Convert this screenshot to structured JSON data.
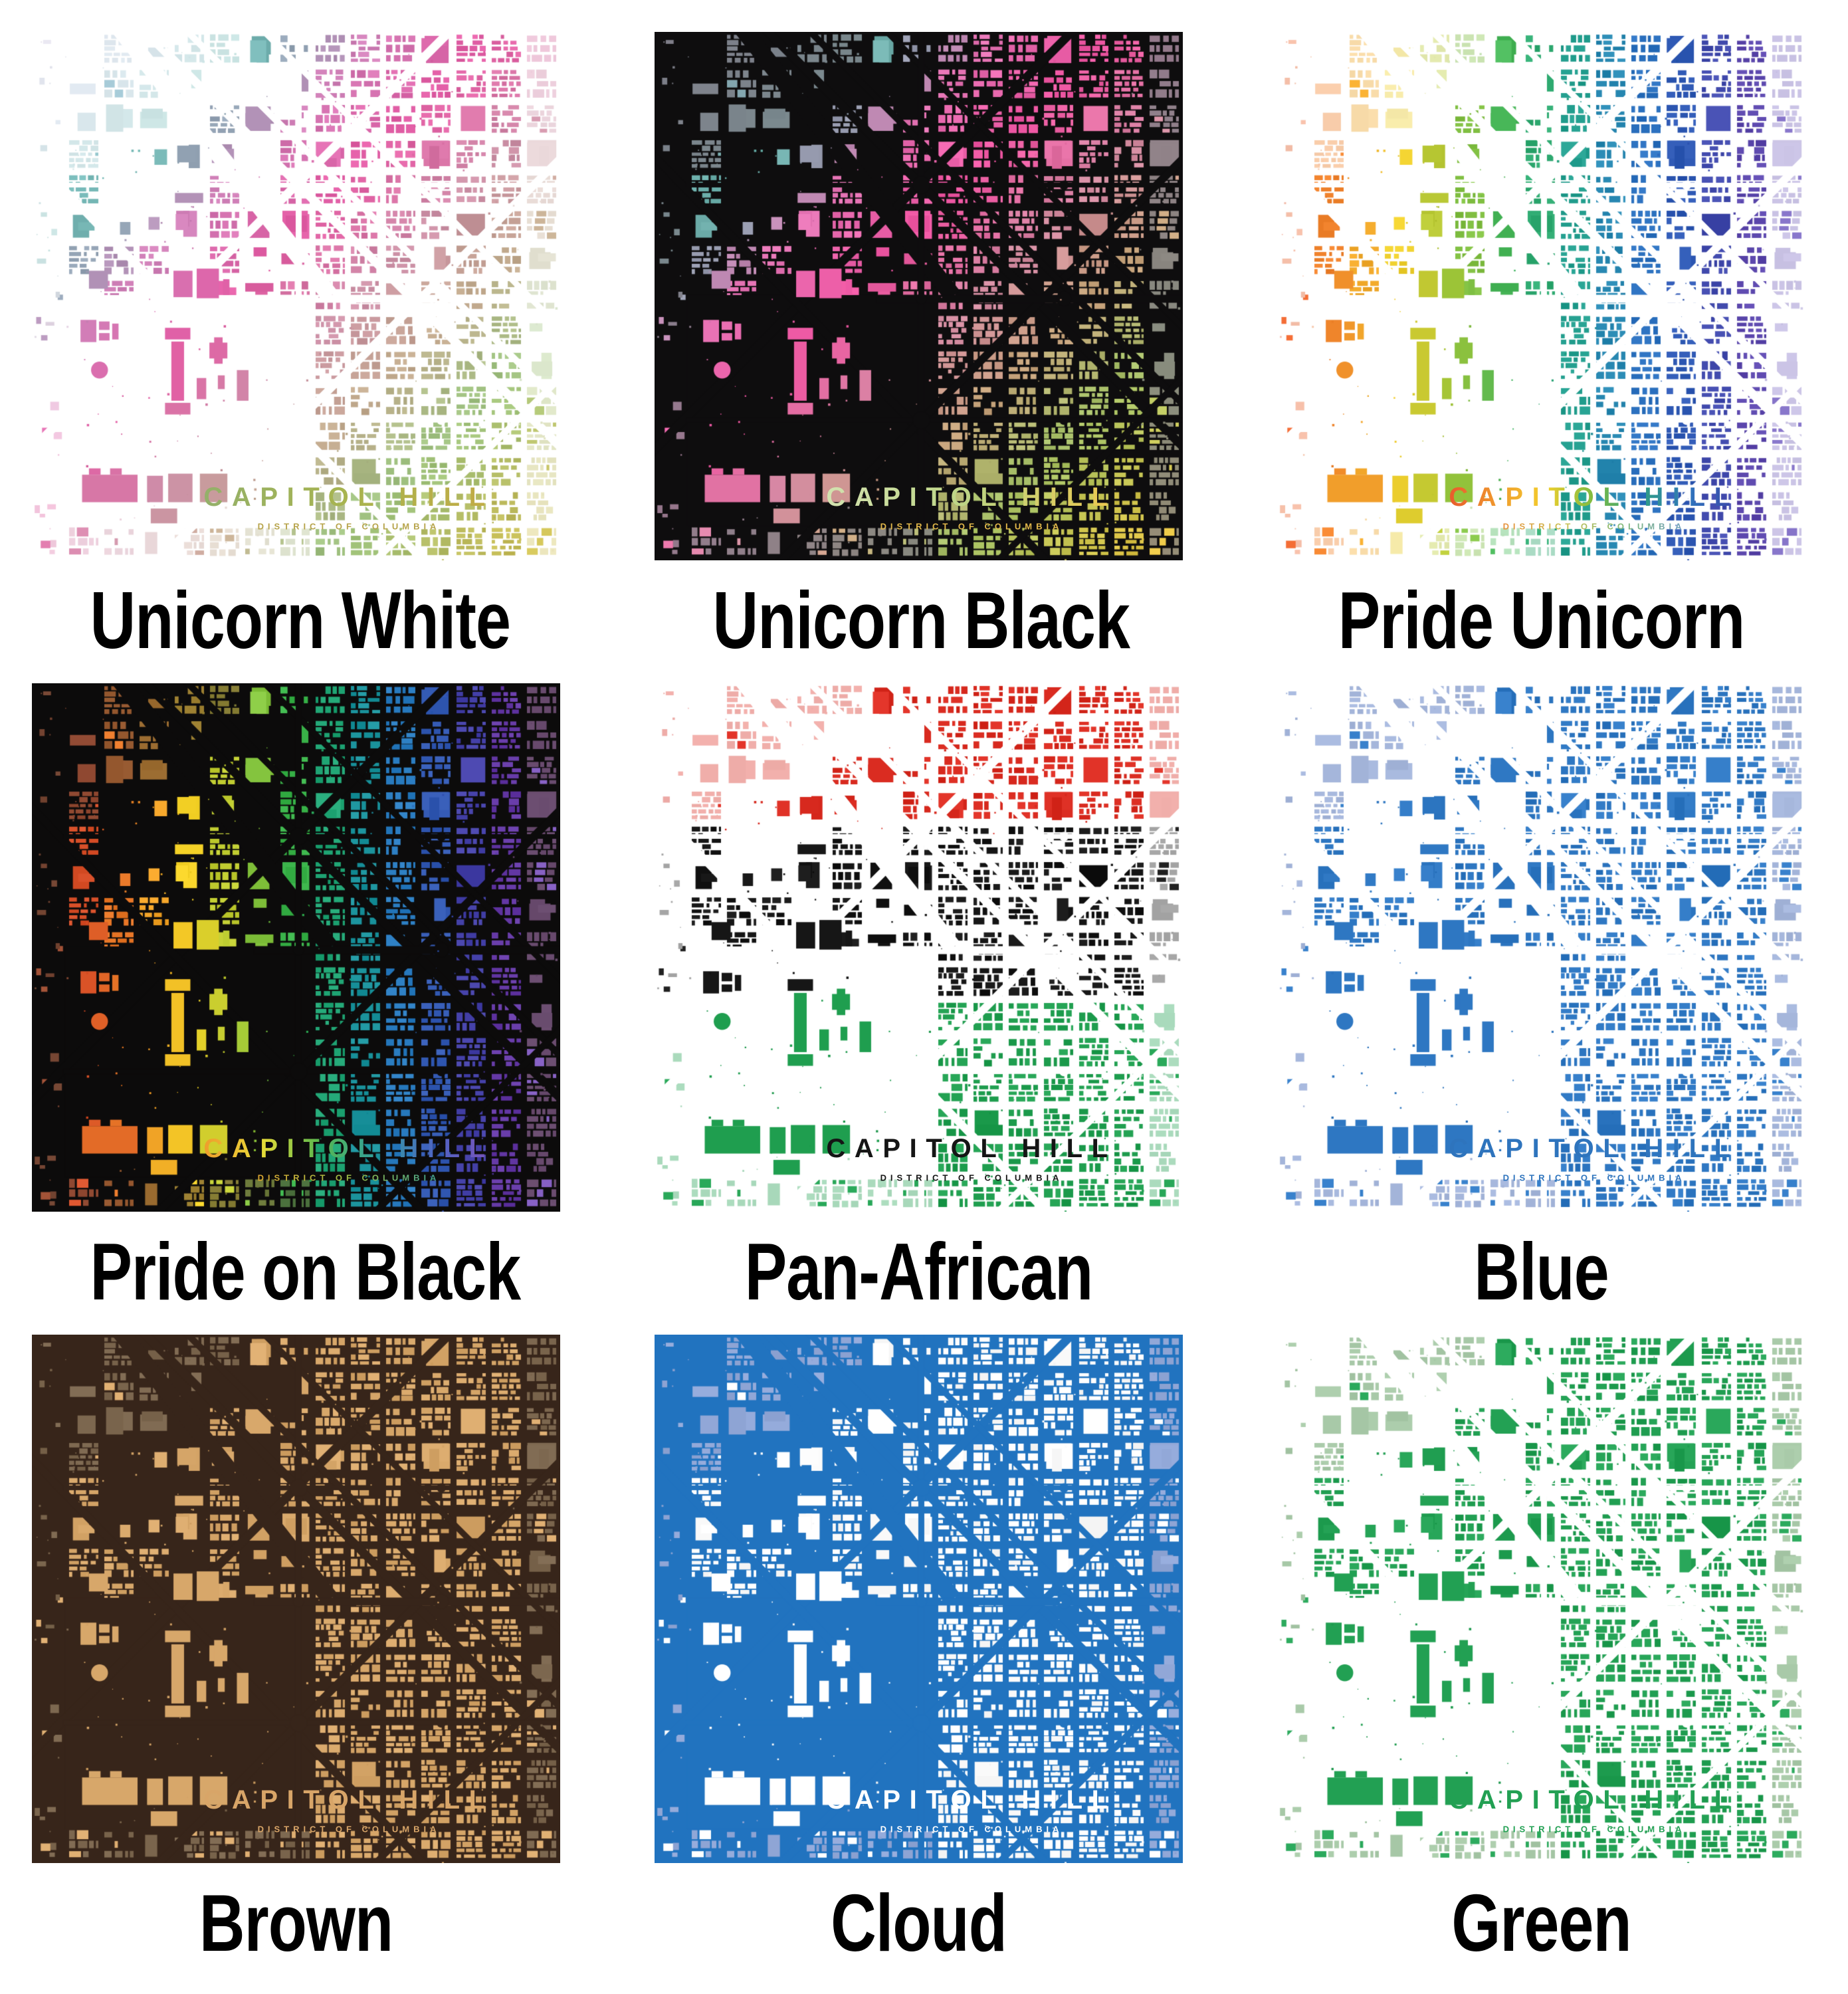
{
  "artwork": {
    "title": "CAPITOL HILL",
    "subtitle": "DISTRICT OF COLUMBIA"
  },
  "tiles": [
    {
      "label": "Unicorn White",
      "slug": "unicorn-white",
      "bg": "#ffffff",
      "palette": {
        "mode": "stops-diag",
        "stops": [
          "#c9b9d8",
          "#a9c4d6",
          "#6cb9b2",
          "#d27fb8",
          "#e45ba4",
          "#ce8fa9",
          "#c2ab8e",
          "#9cc47f",
          "#bcbb5f",
          "#d6c24d"
        ],
        "fade_to": "#ffffff",
        "fade_mix": 0.62
      },
      "title_colors": {
        "gradient": [
          "#93b06a",
          "#a8b44f",
          "#c3ab45"
        ]
      },
      "subtitle_colors": {
        "solid": "#b7a44b"
      }
    },
    {
      "label": "Unicorn Black",
      "slug": "unicorn-black",
      "bg": "#0e0d0e",
      "palette": {
        "mode": "stops-diag",
        "stops": [
          "#7c7488",
          "#7f98a5",
          "#66b5ac",
          "#e873b5",
          "#f055a2",
          "#d68ba5",
          "#c7a57c",
          "#a6c468",
          "#cfc54e",
          "#f2c33c"
        ],
        "fade_to": "#7e7d85",
        "fade_mix": 0.78
      },
      "title_colors": {
        "gradient": [
          "#d3e2b0",
          "#bcd483",
          "#eec84e"
        ]
      },
      "subtitle_colors": {
        "solid": "#e2b84a"
      }
    },
    {
      "label": "Pride Unicorn",
      "slug": "pride-unicorn",
      "bg": "#ffffff",
      "palette": {
        "mode": "stops-x",
        "stops": [
          "#e8552c",
          "#f0872b",
          "#f4cf2b",
          "#9cc438",
          "#3cb45c",
          "#22a189",
          "#2a7cc4",
          "#2f54b2",
          "#5742aa",
          "#8f7fcb"
        ],
        "fade_to": "#ffffff",
        "fade_mix": 0.6
      },
      "title_colors": {
        "gradient": [
          "#e85a2d",
          "#f0992d",
          "#f2cf2d",
          "#7cbb42",
          "#2f9e86",
          "#2f72bd",
          "#3c44a6"
        ]
      },
      "subtitle_colors": {
        "gradient": [
          "#e8913d",
          "#c9c050",
          "#7fb87a",
          "#6f9ec0"
        ]
      }
    },
    {
      "label": "Pride on Black",
      "slug": "pride-on-black",
      "bg": "#0c0b0b",
      "palette": {
        "mode": "stops-x",
        "stops": [
          "#7c4630",
          "#d94f28",
          "#ef8c26",
          "#f4d226",
          "#a6cb38",
          "#38b34a",
          "#149e8c",
          "#2b7cc2",
          "#3847ac",
          "#6639a6",
          "#8a68c6"
        ],
        "fade_to": "#5c4438",
        "fade_mix": 0.58
      },
      "title_colors": {
        "gradient": [
          "#ef9c2c",
          "#e8dc38",
          "#58b84e",
          "#2f9e9e",
          "#4f64c4",
          "#7b52b8"
        ]
      },
      "subtitle_colors": {
        "gradient": [
          "#d9a32f",
          "#9cbf46",
          "#3fa08e"
        ]
      }
    },
    {
      "label": "Pan-African",
      "slug": "pan-african",
      "bg": "#ffffff",
      "palette": {
        "mode": "bands-y",
        "bands": [
          {
            "until": 0.29,
            "color": "#d92b20"
          },
          {
            "until": 0.585,
            "color": "#161616"
          },
          {
            "until": 1.01,
            "color": "#1f9e4f"
          }
        ],
        "fade_to": "#ffffff",
        "fade_mix": 0.62
      },
      "title_colors": {
        "solid": "#151515"
      },
      "subtitle_colors": {
        "solid": "#151515"
      }
    },
    {
      "label": "Blue",
      "slug": "blue",
      "bg": "#ffffff",
      "palette": {
        "mode": "mono",
        "color": "#2e77c2",
        "fade_color": "#a6b7dc"
      },
      "title_colors": {
        "solid": "#2e74bd"
      },
      "subtitle_colors": {
        "solid": "#2e74bd"
      }
    },
    {
      "label": "Brown",
      "slug": "brown",
      "bg": "#37251a",
      "palette": {
        "mode": "mono",
        "color": "#d7a76a",
        "fade_color": "#7d6850"
      },
      "title_colors": {
        "solid": "#d8a568"
      },
      "subtitle_colors": {
        "solid": "#d8a568"
      }
    },
    {
      "label": "Cloud",
      "slug": "cloud",
      "bg": "#2173bf",
      "palette": {
        "mode": "mono",
        "color": "#ffffff",
        "fade_color": "#92a8d8"
      },
      "title_colors": {
        "solid": "#ffffff"
      },
      "subtitle_colors": {
        "solid": "#ffffff"
      }
    },
    {
      "label": "Green",
      "slug": "green",
      "bg": "#ffffff",
      "palette": {
        "mode": "mono",
        "color": "#22a053",
        "fade_color": "#a9caa9"
      },
      "title_colors": {
        "solid": "#22a053"
      },
      "subtitle_colors": {
        "solid": "#22a053"
      }
    }
  ]
}
